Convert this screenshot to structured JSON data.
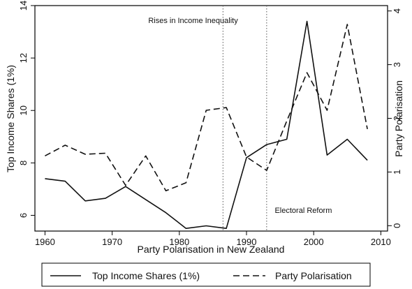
{
  "chart_data": {
    "type": "line",
    "xlabel": "Party Polarisation in New Zealand",
    "ylabel_left": "Top Income Shares (1%)",
    "ylabel_right": "Party Polarisation",
    "xlim": [
      1958.5,
      2011
    ],
    "ylim_left": [
      5.4,
      14
    ],
    "ylim_right": [
      -0.1,
      4.1
    ],
    "x_ticks": [
      1960,
      1970,
      1980,
      1990,
      2000,
      2010
    ],
    "y_left_ticks": [
      6,
      8,
      10,
      12,
      14
    ],
    "y_right_ticks": [
      0,
      1,
      2,
      3,
      4
    ],
    "grid": false,
    "legend_position": "bottom",
    "annotations": [
      {
        "text": "Rises in Income Inequality",
        "x": 1986,
        "y_left": 13.6
      },
      {
        "text": "Electoral Reform",
        "x": 1994,
        "y_left": 6.2
      }
    ],
    "vlines": [
      1986.5,
      1993
    ],
    "series": [
      {
        "name": "Top Income Shares (1%)",
        "axis": "left",
        "style": "solid",
        "x": [
          1960,
          1963,
          1966,
          1969,
          1972,
          1975,
          1978,
          1981,
          1984,
          1987,
          1990,
          1993,
          1996,
          1999,
          2002,
          2005,
          2008
        ],
        "values": [
          7.4,
          7.3,
          6.55,
          6.65,
          7.1,
          6.6,
          6.1,
          5.5,
          5.6,
          5.5,
          8.2,
          8.7,
          8.9,
          13.4,
          8.3,
          8.9,
          8.1
        ]
      },
      {
        "name": "Party Polarisation",
        "axis": "right",
        "style": "dashed",
        "x": [
          1960,
          1963,
          1966,
          1969,
          1972,
          1975,
          1978,
          1981,
          1984,
          1987,
          1990,
          1993,
          1996,
          1999,
          2002,
          2005,
          2008
        ],
        "values": [
          1.3,
          1.5,
          1.33,
          1.35,
          0.75,
          1.3,
          0.65,
          0.8,
          2.15,
          2.2,
          1.28,
          1.03,
          1.95,
          2.85,
          2.15,
          3.75,
          1.8
        ]
      }
    ]
  }
}
